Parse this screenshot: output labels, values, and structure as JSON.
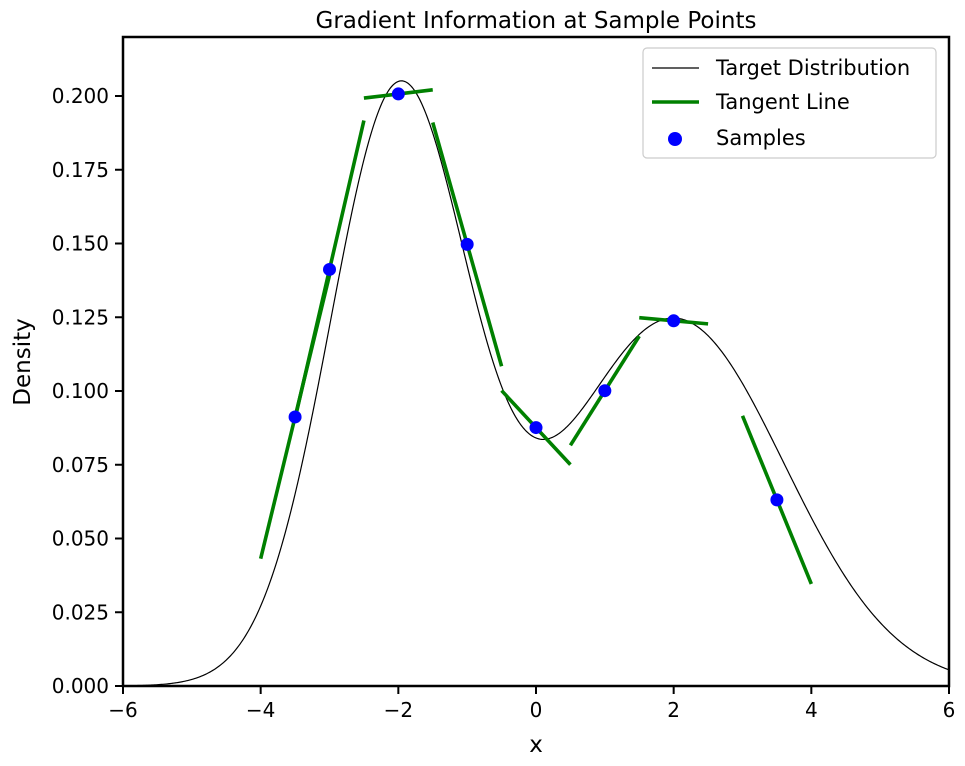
{
  "chart_data": {
    "type": "line",
    "title": "Gradient Information at Sample Points",
    "xlabel": "x",
    "ylabel": "Density",
    "xlim": [
      -6,
      6
    ],
    "ylim": [
      0,
      0.22
    ],
    "x_ticks": [
      -6,
      -4,
      -2,
      0,
      2,
      4,
      6
    ],
    "x_tick_labels": [
      "−6",
      "−4",
      "−2",
      "0",
      "2",
      "4",
      "6"
    ],
    "y_ticks": [
      0,
      0.025,
      0.05,
      0.075,
      0.1,
      0.125,
      0.15,
      0.175,
      0.2
    ],
    "y_tick_labels": [
      "0.000",
      "0.025",
      "0.050",
      "0.075",
      "0.100",
      "0.125",
      "0.150",
      "0.175",
      "0.200"
    ],
    "grid": false,
    "legend_position": "top-right",
    "legend": [
      {
        "label": "Target Distribution",
        "kind": "line",
        "color": "#000000"
      },
      {
        "label": "Tangent Line",
        "kind": "line",
        "color": "#008000"
      },
      {
        "label": "Samples",
        "kind": "marker",
        "color": "#0000ff"
      }
    ],
    "curve": {
      "name": "Target Distribution",
      "color": "#000000",
      "components": [
        {
          "weight": 0.5,
          "mean": -2,
          "std": 1
        },
        {
          "weight": 0.5,
          "mean": 2,
          "std": 1.6
        }
      ]
    },
    "samples": {
      "name": "Samples",
      "color": "#0000ff",
      "x": [
        -3.5,
        -3.0,
        -2.0,
        -1.0,
        0.0,
        1.0,
        2.0,
        3.5
      ],
      "y": [
        0.0912,
        0.1412,
        0.2007,
        0.1497,
        0.0876,
        0.1001,
        0.1238,
        0.0631
      ]
    },
    "tangents": {
      "name": "Tangent Line",
      "color": "#008000",
      "half_width": 0.5,
      "x": [
        -3.5,
        -3.0,
        -2.0,
        -1.0,
        0.0,
        1.0,
        2.0,
        3.5
      ],
      "y": [
        0.0912,
        0.1412,
        0.2007,
        0.1497,
        0.0876,
        0.1001,
        0.1238,
        0.0631
      ],
      "slopes": [
        0.0961,
        0.101,
        0.0028,
        -0.0826,
        -0.0251,
        0.037,
        -0.0021,
        -0.057
      ]
    }
  }
}
